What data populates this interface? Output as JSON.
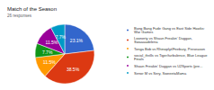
{
  "chart_data": {
    "type": "pie",
    "title": "Match of the Season",
    "subtitle": "26 responses",
    "categories": [
      "Bang Bang Fude Gang vs East Side Hawks: War Games",
      "Loonerty vs Shaun Freakin' Duggan, Swaaaadelena",
      "Tonga Bob vs Rhinoplyt/Feebury, Preseason",
      "social_thrills vs Tiger/turbulence, Blue League Finals",
      "Shaun Freakin' Duggan vs U2Sports (pre...",
      "Senor M vs Sery, SweeetaMama"
    ],
    "values": [
      23.1,
      38.5,
      11.5,
      7.7,
      11.5,
      7.7
    ],
    "value_labels": [
      "23.1%",
      "38.5%",
      "11.5%",
      "7.7%",
      "11.5%",
      "7.7%"
    ],
    "colors": [
      "#3366cc",
      "#dc3912",
      "#ff9900",
      "#109618",
      "#990099",
      "#0099c6"
    ],
    "data_labels": true,
    "legend": "right"
  }
}
